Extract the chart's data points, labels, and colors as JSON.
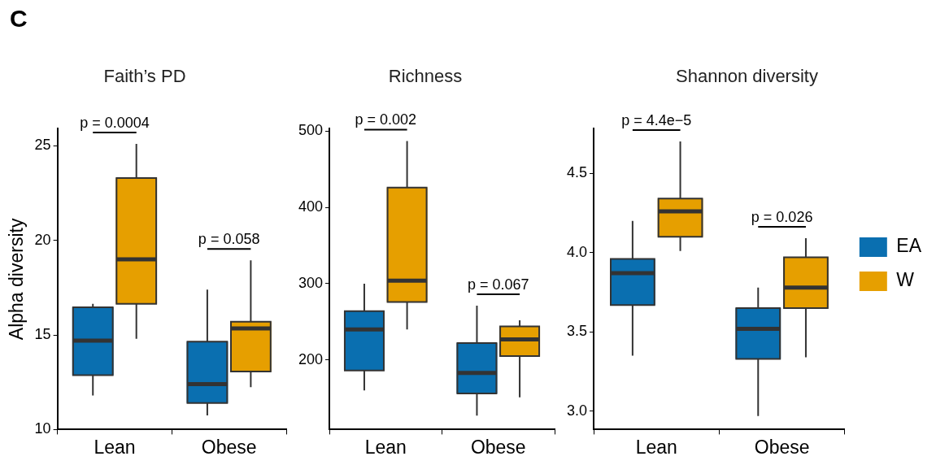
{
  "chart_data": [
    {
      "type": "box",
      "title": "Faith’s PD",
      "ylabel": "Alpha diversity",
      "categories": [
        "Lean",
        "Obese"
      ],
      "ylim": [
        10,
        25.9
      ],
      "yticks": [
        10,
        15,
        20,
        25
      ],
      "legend": false,
      "series": [
        {
          "color": "#0a6fb0",
          "boxes": [
            {
              "low": 11.8,
              "q1": 12.87,
              "median": 14.7,
              "q3": 16.46,
              "high": 16.65
            },
            {
              "low": 10.75,
              "q1": 11.4,
              "median": 12.4,
              "q3": 14.65,
              "high": 17.4
            }
          ]
        },
        {
          "color": "#e69f00",
          "boxes": [
            {
              "low": 14.8,
              "q1": 16.65,
              "median": 19.0,
              "q3": 23.3,
              "high": 25.1
            },
            {
              "low": 12.24,
              "q1": 13.07,
              "median": 15.35,
              "q3": 15.7,
              "high": 18.95
            }
          ]
        }
      ],
      "annotations": [
        "C",
        "p = 0.0004",
        "p = 0.058"
      ]
    },
    {
      "type": "box",
      "title": "Richness",
      "categories": [
        "Lean",
        "Obese"
      ],
      "ylim": [
        108.7,
        503
      ],
      "yticks": [
        200,
        300,
        400,
        500
      ],
      "legend": false,
      "series": [
        {
          "color": "#0a6fb0",
          "boxes": [
            {
              "low": 160,
              "q1": 186,
              "median": 240,
              "q3": 264,
              "high": 300
            },
            {
              "low": 127,
              "q1": 156,
              "median": 183,
              "q3": 222,
              "high": 271
            }
          ]
        },
        {
          "color": "#e69f00",
          "boxes": [
            {
              "low": 240,
              "q1": 276,
              "median": 304,
              "q3": 426,
              "high": 487
            },
            {
              "low": 151,
              "q1": 205,
              "median": 227,
              "q3": 244,
              "high": 252
            }
          ]
        }
      ],
      "annotations": [
        "p = 0.002",
        "p = 0.067"
      ]
    },
    {
      "type": "box",
      "title": "Shannon diversity",
      "categories": [
        "Lean",
        "Obese"
      ],
      "ylim": [
        2.885,
        4.78
      ],
      "yticks": [
        {
          "value": 3,
          "label": "3.0"
        },
        3.5,
        {
          "value": 4,
          "label": "4.0"
        },
        4.5
      ],
      "legend": "right",
      "series": [
        {
          "name": "EA",
          "color": "#0a6fb0",
          "boxes": [
            {
              "low": 3.35,
              "q1": 3.67,
              "median": 3.87,
              "q3": 3.96,
              "high": 4.2
            },
            {
              "low": 2.97,
              "q1": 3.33,
              "median": 3.52,
              "q3": 3.65,
              "high": 3.78
            }
          ]
        },
        {
          "name": "W",
          "color": "#e69f00",
          "boxes": [
            {
              "low": 4.01,
              "q1": 4.1,
              "median": 4.26,
              "q3": 4.34,
              "high": 4.7
            },
            {
              "low": 3.34,
              "q1": 3.65,
              "median": 3.78,
              "q3": 3.97,
              "high": 4.09
            }
          ]
        }
      ],
      "annotations": [
        "p = 4.4e−5",
        "p = 0.026"
      ]
    }
  ]
}
